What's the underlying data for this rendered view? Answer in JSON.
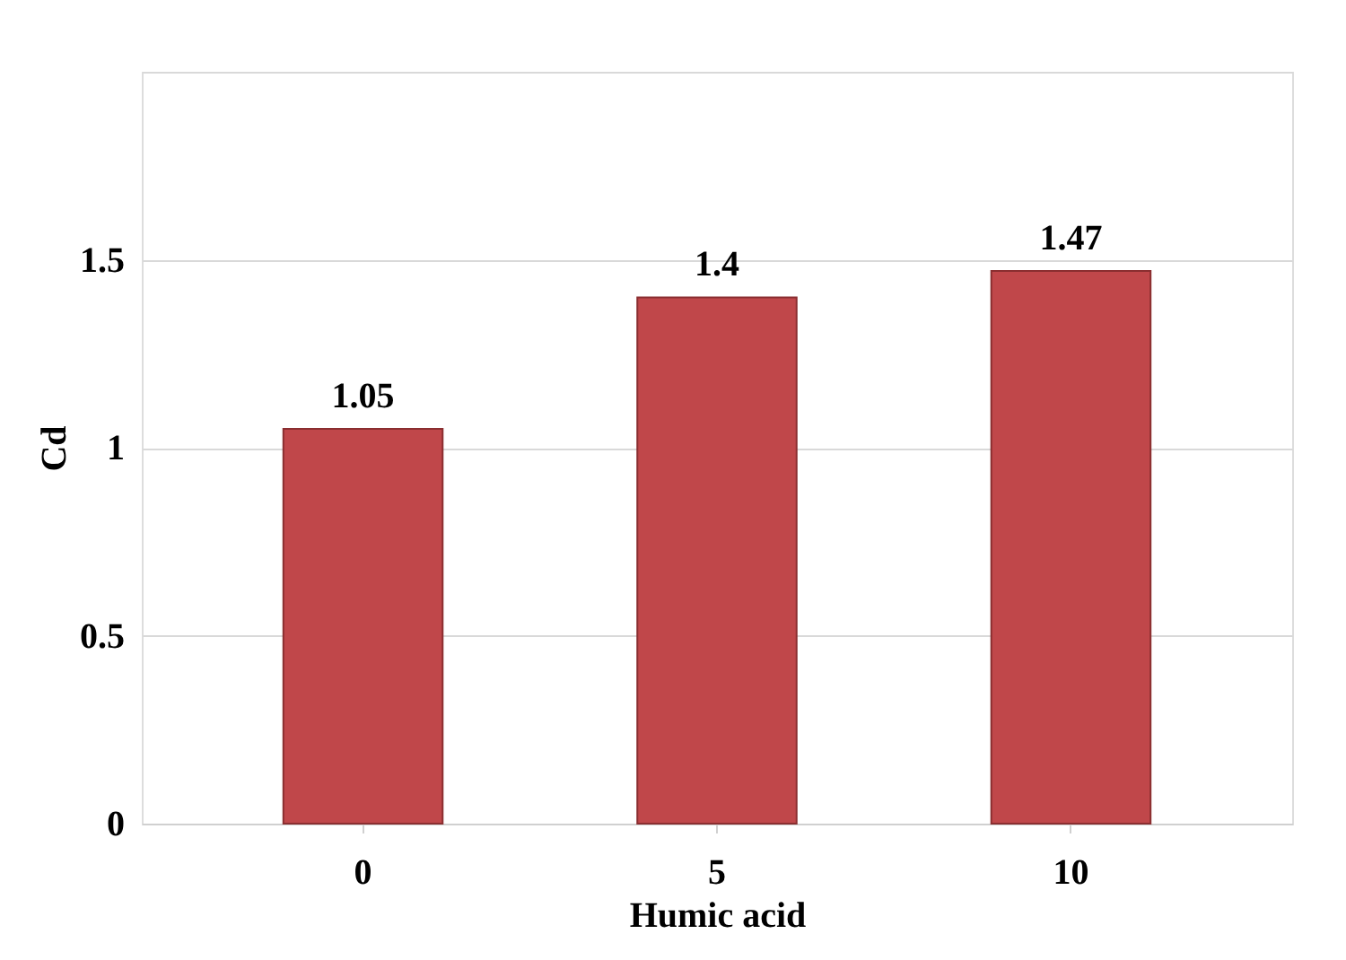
{
  "chart_data": {
    "type": "bar",
    "xlabel": "Humic acid",
    "ylabel": "Cd",
    "categories": [
      "0",
      "5",
      "10"
    ],
    "values": [
      1.05,
      1.4,
      1.47
    ],
    "color": "#c0474a",
    "ylim": [
      0,
      2
    ],
    "yticks": [
      0,
      0.5,
      1,
      1.5,
      {
        "value": 2,
        "label": null
      }
    ],
    "grid": "y",
    "data_labels": true
  }
}
